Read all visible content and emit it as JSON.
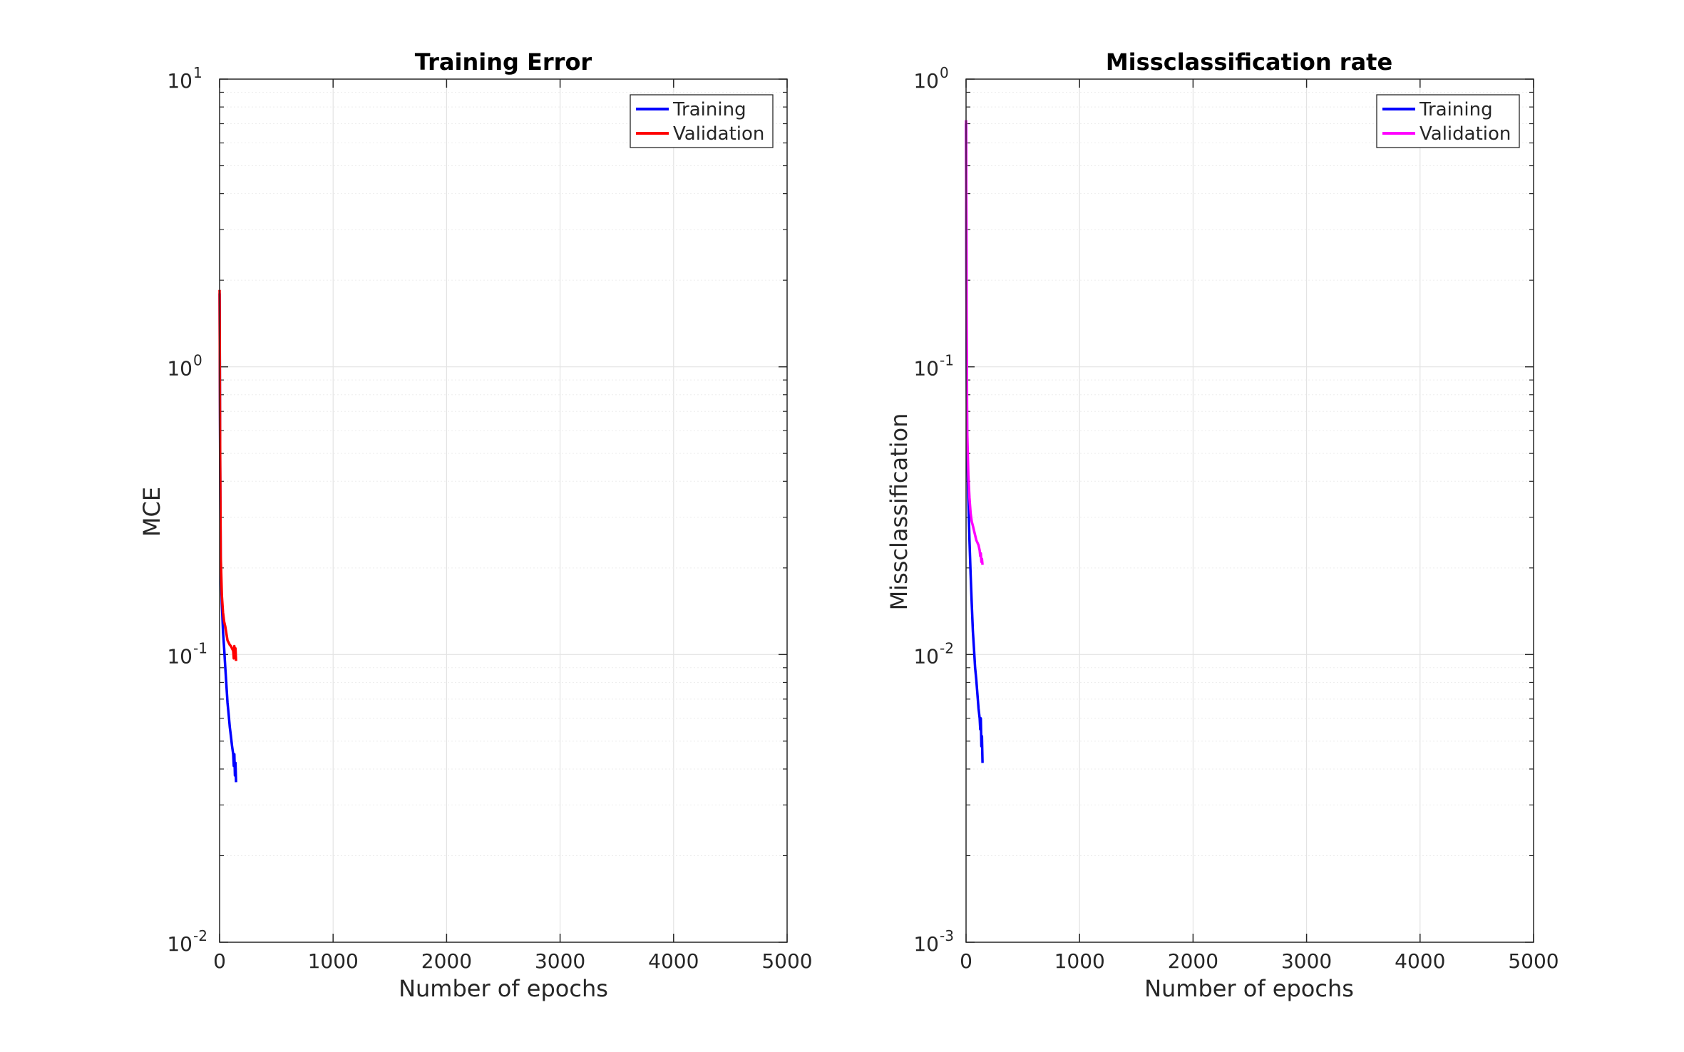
{
  "chart_data": [
    {
      "type": "line",
      "title": "Training Error",
      "xlabel": "Number of epochs",
      "ylabel": "MCE",
      "xlim": [
        0,
        5000
      ],
      "ylim": [
        0.01,
        10
      ],
      "yscale": "log",
      "grid": true,
      "legend_position": "top-right",
      "x_ticks": [
        "0",
        "1000",
        "2000",
        "3000",
        "4000",
        "5000"
      ],
      "y_ticks": [
        {
          "base": "10",
          "exp": "-2"
        },
        {
          "base": "10",
          "exp": "-1"
        },
        {
          "base": "10",
          "exp": "0"
        },
        {
          "base": "10",
          "exp": "1"
        }
      ],
      "series": [
        {
          "name": "Training",
          "color": "#0000ff",
          "x": [
            0,
            5,
            10,
            20,
            30,
            40,
            50,
            60,
            70,
            80,
            90,
            100,
            110,
            120,
            125,
            130,
            135,
            140,
            145
          ],
          "y": [
            1.8,
            0.45,
            0.2,
            0.15,
            0.12,
            0.105,
            0.09,
            0.078,
            0.068,
            0.062,
            0.056,
            0.052,
            0.048,
            0.045,
            0.041,
            0.045,
            0.038,
            0.042,
            0.036
          ]
        },
        {
          "name": "Validation",
          "color": "#ff0000",
          "x": [
            0,
            5,
            10,
            20,
            30,
            40,
            50,
            60,
            70,
            80,
            90,
            100,
            110,
            120,
            125,
            130,
            135,
            140,
            145
          ],
          "y": [
            1.85,
            0.5,
            0.22,
            0.16,
            0.14,
            0.13,
            0.125,
            0.118,
            0.112,
            0.11,
            0.108,
            0.107,
            0.105,
            0.103,
            0.097,
            0.107,
            0.1,
            0.105,
            0.095
          ]
        }
      ]
    },
    {
      "type": "line",
      "title": "Missclassification rate",
      "xlabel": "Number of epochs",
      "ylabel": "Missclassification",
      "xlim": [
        0,
        5000
      ],
      "ylim": [
        0.001,
        1
      ],
      "yscale": "log",
      "grid": true,
      "legend_position": "top-right",
      "x_ticks": [
        "0",
        "1000",
        "2000",
        "3000",
        "4000",
        "5000"
      ],
      "y_ticks": [
        {
          "base": "10",
          "exp": "-3"
        },
        {
          "base": "10",
          "exp": "-2"
        },
        {
          "base": "10",
          "exp": "-1"
        },
        {
          "base": "10",
          "exp": "0"
        }
      ],
      "series": [
        {
          "name": "Training",
          "color": "#0000ff",
          "x": [
            0,
            5,
            10,
            20,
            30,
            40,
            50,
            60,
            70,
            80,
            90,
            100,
            110,
            120,
            125,
            130,
            135,
            140,
            145
          ],
          "y": [
            0.7,
            0.12,
            0.05,
            0.035,
            0.025,
            0.019,
            0.015,
            0.012,
            0.0105,
            0.009,
            0.0082,
            0.0073,
            0.0065,
            0.006,
            0.0055,
            0.006,
            0.0048,
            0.0052,
            0.0042
          ]
        },
        {
          "name": "Validation",
          "color": "#ff00ff",
          "x": [
            0,
            5,
            10,
            20,
            30,
            40,
            50,
            60,
            70,
            80,
            90,
            100,
            110,
            120,
            125,
            130,
            135,
            140,
            145
          ],
          "y": [
            0.72,
            0.15,
            0.06,
            0.042,
            0.035,
            0.031,
            0.029,
            0.028,
            0.027,
            0.026,
            0.025,
            0.0245,
            0.024,
            0.023,
            0.022,
            0.0225,
            0.021,
            0.0215,
            0.0205
          ]
        }
      ]
    }
  ]
}
